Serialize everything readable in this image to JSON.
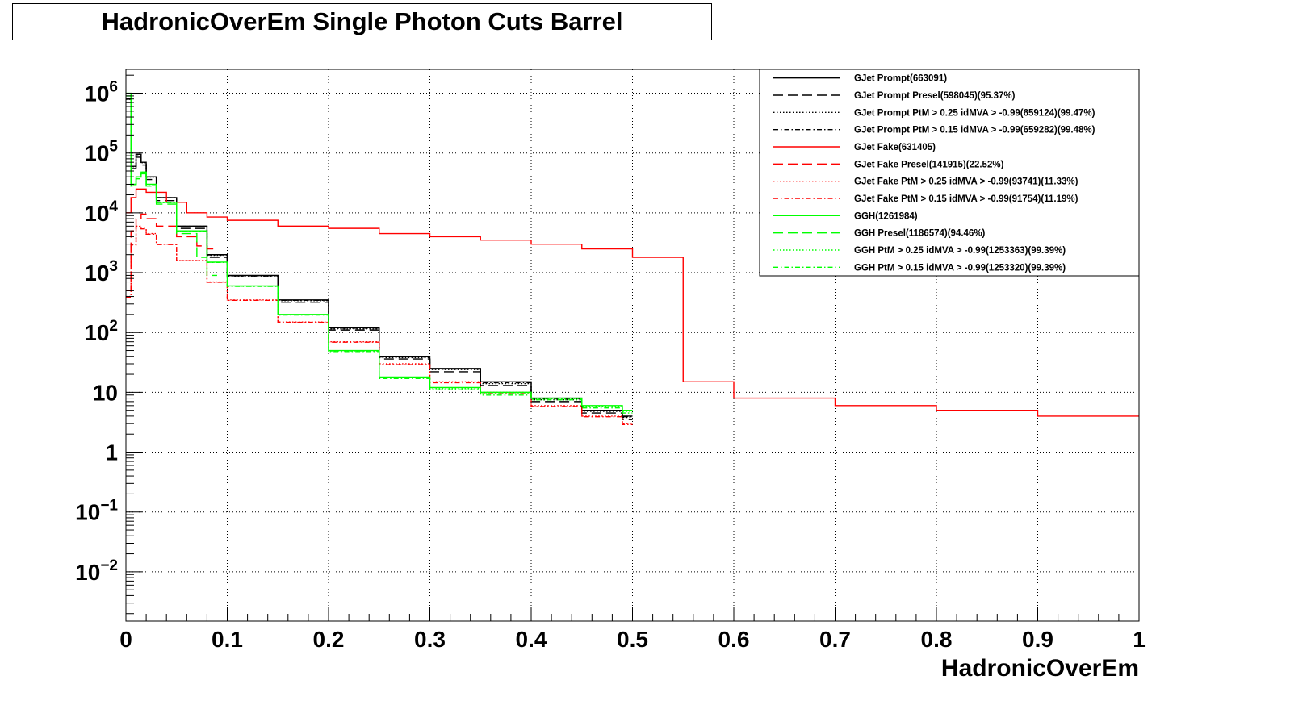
{
  "chart_data": {
    "type": "line",
    "title": "HadronicOverEm Single Photon Cuts Barrel",
    "xlabel": "HadronicOverEm",
    "ylabel": "",
    "xlim": [
      0,
      1
    ],
    "ylim": [
      0.0015,
      2500000
    ],
    "y_scale": "log",
    "grid": true,
    "legend_position": "top-right",
    "x_ticks": [
      "0",
      "0.1",
      "0.2",
      "0.3",
      "0.4",
      "0.5",
      "0.6",
      "0.7",
      "0.8",
      "0.9",
      "1"
    ],
    "y_ticks": [
      {
        "value": 1000000,
        "base": "10",
        "exp": "6"
      },
      {
        "value": 100000,
        "base": "10",
        "exp": "5"
      },
      {
        "value": 10000,
        "base": "10",
        "exp": "4"
      },
      {
        "value": 1000,
        "base": "10",
        "exp": "3"
      },
      {
        "value": 100,
        "base": "10",
        "exp": "2"
      },
      {
        "value": 10,
        "base": "10",
        "exp": ""
      },
      {
        "value": 1,
        "base": "1",
        "exp": ""
      },
      {
        "value": 0.1,
        "base": "10",
        "exp": "−1"
      },
      {
        "value": 0.01,
        "base": "10",
        "exp": "−2"
      }
    ],
    "series": [
      {
        "name": "GJet Prompt(663091)",
        "color": "#000000",
        "dash": "solid",
        "x": [
          0,
          0.005,
          0.01,
          0.015,
          0.02,
          0.03,
          0.05,
          0.08,
          0.1,
          0.15,
          0.2,
          0.25,
          0.3,
          0.35,
          0.4,
          0.45,
          0.49
        ],
        "y": [
          800000,
          60000,
          95000,
          70000,
          40000,
          18000,
          6000,
          2000,
          900,
          350,
          120,
          40,
          25,
          15,
          8,
          5,
          4
        ]
      },
      {
        "name": "GJet Prompt Presel(598045)(95.37%)",
        "color": "#000000",
        "dash": "long",
        "x": [
          0,
          0.005,
          0.01,
          0.015,
          0.02,
          0.03,
          0.05,
          0.08,
          0.1,
          0.15,
          0.2,
          0.25,
          0.3,
          0.35,
          0.4,
          0.45,
          0.49
        ],
        "y": [
          700000,
          55000,
          85000,
          63000,
          36000,
          16000,
          5500,
          1800,
          850,
          320,
          110,
          36,
          22,
          13,
          7,
          4.5,
          3.5
        ]
      },
      {
        "name": "GJet Prompt PtM > 0.25 idMVA > -0.99(659124)(99.47%)",
        "color": "#000000",
        "dash": "dot",
        "x": [
          0,
          0.005,
          0.01,
          0.015,
          0.02,
          0.03,
          0.05,
          0.08,
          0.1,
          0.15,
          0.2,
          0.25,
          0.3,
          0.35,
          0.4,
          0.45,
          0.49
        ],
        "y": [
          790000,
          59000,
          94000,
          69000,
          39500,
          17800,
          5900,
          1950,
          880,
          340,
          115,
          38,
          24,
          14,
          7.5,
          4.8,
          3.8
        ]
      },
      {
        "name": "GJet Prompt PtM > 0.15 idMVA > -0.99(659282)(99.48%)",
        "color": "#000000",
        "dash": "dashdot",
        "x": [
          0,
          0.005,
          0.01,
          0.015,
          0.02,
          0.03,
          0.05,
          0.08,
          0.1,
          0.15,
          0.2,
          0.25,
          0.3,
          0.35,
          0.4,
          0.45,
          0.49
        ],
        "y": [
          795000,
          59500,
          94500,
          69500,
          39800,
          17900,
          5950,
          1980,
          890,
          345,
          118,
          39,
          24.5,
          14.5,
          7.8,
          4.9,
          3.9
        ]
      },
      {
        "name": "GJet Fake(631405)",
        "color": "#ff0000",
        "dash": "solid",
        "x": [
          0,
          0.005,
          0.01,
          0.02,
          0.04,
          0.06,
          0.08,
          0.1,
          0.15,
          0.2,
          0.25,
          0.3,
          0.35,
          0.4,
          0.45,
          0.5,
          0.55,
          0.6,
          0.7,
          0.8,
          0.9,
          0.99
        ],
        "y": [
          10000,
          18000,
          25000,
          22000,
          15000,
          10000,
          8500,
          7500,
          6000,
          5500,
          4500,
          4000,
          3500,
          3000,
          2500,
          1800,
          15,
          8,
          6,
          5,
          4,
          4
        ]
      },
      {
        "name": "GJet Fake Presel(141915)(22.52%)",
        "color": "#ff0000",
        "dash": "long",
        "x": [
          0,
          0.005,
          0.01,
          0.015,
          0.02,
          0.03,
          0.05,
          0.07,
          0.08
        ],
        "y": [
          500,
          5000,
          8000,
          9500,
          8000,
          6000,
          4000,
          2800,
          2500
        ]
      },
      {
        "name": "GJet Fake PtM > 0.25 idMVA > -0.99(93741)(11.33%)",
        "color": "#ff0000",
        "dash": "dot",
        "x": [
          0,
          0.005,
          0.01,
          0.015,
          0.02,
          0.03,
          0.05,
          0.08,
          0.1,
          0.15,
          0.2,
          0.25,
          0.3,
          0.35,
          0.4,
          0.45,
          0.49
        ],
        "y": [
          400,
          3000,
          6000,
          5500,
          4500,
          3000,
          1600,
          700,
          350,
          150,
          70,
          30,
          15,
          10,
          6,
          4,
          3
        ]
      },
      {
        "name": "GJet Fake PtM > 0.15 idMVA > -0.99(91754)(11.19%)",
        "color": "#ff0000",
        "dash": "dashdot",
        "x": [
          0,
          0.005,
          0.01,
          0.015,
          0.02,
          0.03,
          0.05,
          0.08,
          0.1,
          0.15,
          0.2,
          0.25,
          0.3,
          0.35,
          0.4,
          0.45,
          0.49
        ],
        "y": [
          390,
          2900,
          5900,
          5400,
          4400,
          2950,
          1580,
          690,
          345,
          148,
          69,
          29,
          14.5,
          9.5,
          5.8,
          3.9,
          2.9
        ]
      },
      {
        "name": "GGH(1261984)",
        "color": "#00ff00",
        "dash": "solid",
        "x": [
          0,
          0.005,
          0.01,
          0.015,
          0.02,
          0.03,
          0.05,
          0.08,
          0.1,
          0.15,
          0.2,
          0.25,
          0.3,
          0.35,
          0.4,
          0.45,
          0.49
        ],
        "y": [
          1000000,
          30000,
          40000,
          48000,
          30000,
          15000,
          5000,
          1500,
          600,
          200,
          50,
          18,
          12,
          10,
          8,
          6,
          5
        ]
      },
      {
        "name": "GGH Presel(1186574)(94.46%)",
        "color": "#00ff00",
        "dash": "long",
        "x": [
          0,
          0.005,
          0.01,
          0.015,
          0.02,
          0.03,
          0.05,
          0.07,
          0.08
        ],
        "y": [
          900000,
          28000,
          37000,
          45000,
          28000,
          14000,
          4500,
          1800,
          900
        ]
      },
      {
        "name": "GGH PtM > 0.25 idMVA > -0.99(1253363)(99.39%)",
        "color": "#00ff00",
        "dash": "dot",
        "x": [
          0,
          0.005,
          0.01,
          0.015,
          0.02,
          0.03,
          0.05,
          0.08,
          0.1,
          0.15,
          0.2,
          0.25,
          0.3,
          0.35,
          0.4,
          0.45,
          0.49
        ],
        "y": [
          990000,
          29800,
          39800,
          47800,
          29800,
          14900,
          4950,
          1490,
          595,
          198,
          49,
          17.5,
          11.5,
          9.5,
          7.8,
          5.8,
          4.8
        ]
      },
      {
        "name": "GGH PtM > 0.15 idMVA > -0.99(1253320)(99.39%)",
        "color": "#00ff00",
        "dash": "dashdot",
        "x": [
          0,
          0.005,
          0.01,
          0.015,
          0.02,
          0.03,
          0.05,
          0.08,
          0.1,
          0.15,
          0.2,
          0.25,
          0.3,
          0.35,
          0.4,
          0.45,
          0.49
        ],
        "y": [
          985000,
          29700,
          39700,
          47700,
          29700,
          14850,
          4940,
          1485,
          590,
          196,
          48,
          17,
          11,
          9,
          7.5,
          5.5,
          4.5
        ]
      }
    ]
  }
}
